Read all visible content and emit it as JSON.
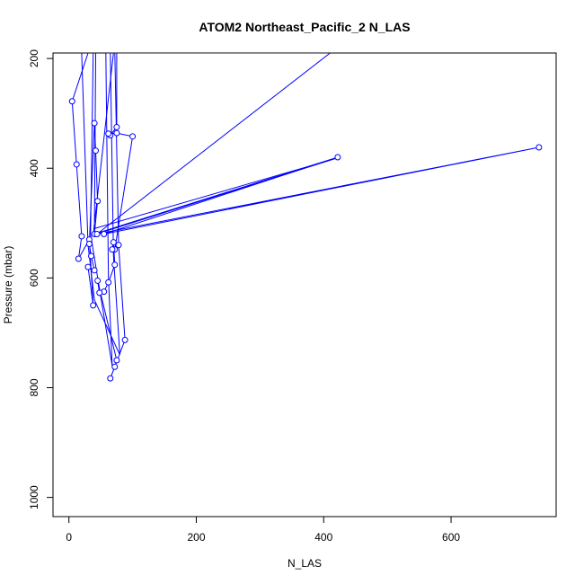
{
  "chart_data": {
    "type": "line",
    "title": "ATOM2 Northeast_Pacific_2 N_LAS",
    "xlabel": "N_LAS",
    "ylabel": "Pressure (mbar)",
    "xlim": [
      -25,
      765
    ],
    "ylim": [
      1035,
      190
    ],
    "y_reversed": true,
    "x_ticks": [
      0,
      200,
      400,
      600
    ],
    "y_ticks": [
      200,
      400,
      600,
      800,
      1000
    ],
    "grid": false,
    "legend": "none",
    "colors": {
      "series": "#0000ff",
      "axis": "#000000"
    },
    "series": [
      {
        "marker": "open-circle",
        "points": [
          {
            "x": 30,
            "y": 190
          },
          {
            "x": 5,
            "y": 278
          },
          {
            "x": 12,
            "y": 393
          },
          {
            "x": 20,
            "y": 524
          },
          {
            "x": 15,
            "y": 565
          },
          {
            "x": 32,
            "y": 530
          },
          {
            "x": 38,
            "y": 650
          },
          {
            "x": 30,
            "y": 580
          },
          {
            "x": 40,
            "y": 586
          },
          {
            "x": 35,
            "y": 560
          },
          {
            "x": 32,
            "y": 538
          },
          {
            "x": 40,
            "y": 318
          },
          {
            "x": 42,
            "y": 368
          },
          {
            "x": 45,
            "y": 460
          },
          {
            "x": 40,
            "y": 520
          },
          {
            "x": 422,
            "y": 380
          },
          {
            "x": 55,
            "y": 520
          },
          {
            "x": 738,
            "y": 362
          },
          {
            "x": 44,
            "y": 520
          },
          {
            "x": 410,
            "y": 190
          },
          {
            "x": 60,
            "y": 190
          }
        ]
      },
      {
        "marker": "open-circle",
        "points": [
          {
            "x": 75,
            "y": 190
          },
          {
            "x": 75,
            "y": 325
          },
          {
            "x": 65,
            "y": 340
          },
          {
            "x": 62,
            "y": 337
          },
          {
            "x": 75,
            "y": 336
          },
          {
            "x": 100,
            "y": 342
          },
          {
            "x": 72,
            "y": 548
          },
          {
            "x": 68,
            "y": 548
          },
          {
            "x": 70,
            "y": 535
          },
          {
            "x": 72,
            "y": 576
          },
          {
            "x": 62,
            "y": 608
          },
          {
            "x": 55,
            "y": 625
          },
          {
            "x": 48,
            "y": 627
          },
          {
            "x": 45,
            "y": 605
          },
          {
            "x": 75,
            "y": 750
          },
          {
            "x": 72,
            "y": 762
          },
          {
            "x": 65,
            "y": 783
          },
          {
            "x": 88,
            "y": 713
          },
          {
            "x": 78,
            "y": 540
          },
          {
            "x": 72,
            "y": 190
          }
        ]
      },
      {
        "marker": "none",
        "points": [
          {
            "x": 20,
            "y": 190
          },
          {
            "x": 30,
            "y": 540
          },
          {
            "x": 40,
            "y": 640
          },
          {
            "x": 80,
            "y": 740
          },
          {
            "x": 70,
            "y": 560
          },
          {
            "x": 65,
            "y": 190
          }
        ]
      },
      {
        "marker": "none",
        "points": [
          {
            "x": 38,
            "y": 190
          },
          {
            "x": 34,
            "y": 520
          },
          {
            "x": 48,
            "y": 620
          },
          {
            "x": 68,
            "y": 760
          },
          {
            "x": 62,
            "y": 600
          },
          {
            "x": 58,
            "y": 190
          }
        ]
      },
      {
        "marker": "none",
        "points": [
          {
            "x": 42,
            "y": 190
          },
          {
            "x": 40,
            "y": 510
          },
          {
            "x": 420,
            "y": 382
          },
          {
            "x": 38,
            "y": 522
          },
          {
            "x": 70,
            "y": 190
          }
        ]
      }
    ]
  }
}
